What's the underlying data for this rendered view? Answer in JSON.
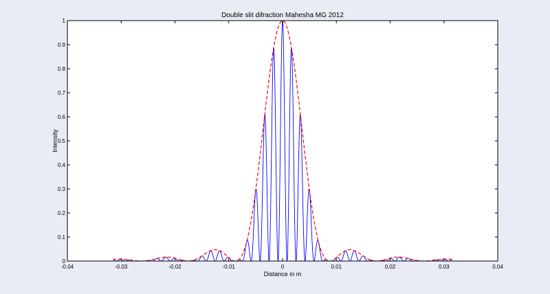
{
  "chart_data": {
    "type": "line",
    "title": "Double slit difraction  Mahesha MG 2012",
    "xlabel": "Distance in m",
    "ylabel": "Intensity",
    "xlim": [
      -0.04,
      0.04
    ],
    "ylim": [
      0,
      1
    ],
    "xticks": [
      "-0.04",
      "-0.03",
      "-0.02",
      "-0.01",
      "0",
      "0.01",
      "0.02",
      "0.03",
      "0.04"
    ],
    "yticks": [
      "0",
      "0.1",
      "0.2",
      "0.3",
      "0.4",
      "0.5",
      "0.6",
      "0.7",
      "0.8",
      "0.9",
      "1"
    ],
    "grid": false,
    "series": [
      {
        "kind": "interference-pattern",
        "color": "#0000ff",
        "line_style": "solid",
        "x_range": [
          -0.0315,
          0.0315
        ],
        "fringe_spacing": 0.00167,
        "envelope_first_zero": 0.00875
      },
      {
        "kind": "single-slit-envelope",
        "color": "#ff0000",
        "line_style": "dashed",
        "x_range": [
          -0.0315,
          0.0315
        ],
        "first_zero": 0.00875,
        "peak": 1.0
      }
    ]
  },
  "colors": {
    "background": "#e9ecf4",
    "plot_area": "#ffffff",
    "axes": "#000000"
  }
}
